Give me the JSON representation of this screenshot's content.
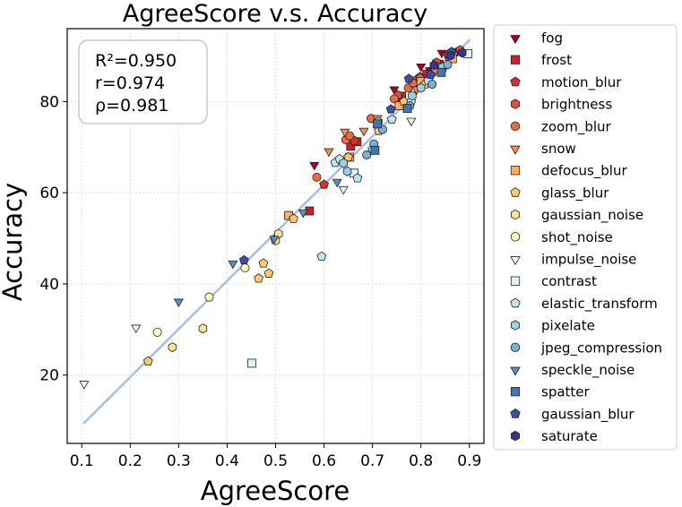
{
  "chart_data": {
    "type": "scatter",
    "title": "AgreeScore  v.s.  Accuracy",
    "xlabel": "AgreeScore",
    "ylabel": "Accuracy",
    "xlim": [
      0.07,
      0.93
    ],
    "ylim": [
      5,
      96
    ],
    "xticks": [
      0.1,
      0.2,
      0.3,
      0.4,
      0.5,
      0.6,
      0.7,
      0.8,
      0.9
    ],
    "xtick_labels": [
      "0.1",
      "0.2",
      "0.3",
      "0.4",
      "0.5",
      "0.6",
      "0.7",
      "0.8",
      "0.9"
    ],
    "yticks": [
      20,
      40,
      60,
      80
    ],
    "ytick_labels": [
      "20",
      "40",
      "60",
      "80"
    ],
    "grid": true,
    "legend_position": "right, outside plot",
    "stats": {
      "r2": "R²=0.950",
      "r": "r=0.974",
      "rho": "ρ=0.981"
    },
    "fit_line": {
      "color": "#a6bdf0",
      "points": [
        [
          0.105,
          9.5
        ],
        [
          0.9,
          93.5
        ]
      ]
    },
    "series": [
      {
        "name": "fog",
        "marker": "triangle-down",
        "color": "#a50026",
        "points": [
          [
            0.58,
            66.2
          ],
          [
            0.745,
            82.8
          ],
          [
            0.8,
            87.8
          ],
          [
            0.843,
            90.8
          ],
          [
            0.875,
            91.2
          ],
          [
            0.818,
            87.0
          ],
          [
            0.86,
            90.5
          ]
        ]
      },
      {
        "name": "frost",
        "marker": "square",
        "color": "#c8232a",
        "points": [
          [
            0.57,
            56.0
          ],
          [
            0.655,
            70.2
          ],
          [
            0.76,
            81.2
          ],
          [
            0.812,
            86.0
          ],
          [
            0.838,
            88.2
          ],
          [
            0.668,
            71.2
          ]
        ]
      },
      {
        "name": "motion_blur",
        "marker": "pentagon",
        "color": "#d73027",
        "points": [
          [
            0.6,
            61.8
          ],
          [
            0.663,
            71.4
          ],
          [
            0.752,
            81.0
          ],
          [
            0.798,
            85.4
          ],
          [
            0.828,
            87.8
          ],
          [
            0.857,
            89.8
          ],
          [
            0.88,
            91.0
          ]
        ]
      },
      {
        "name": "brightness",
        "marker": "hexagon",
        "color": "#e04f36",
        "points": [
          [
            0.752,
            81.4
          ],
          [
            0.79,
            84.7
          ],
          [
            0.832,
            88.6
          ],
          [
            0.858,
            90.3
          ],
          [
            0.881,
            91.3
          ]
        ]
      },
      {
        "name": "zoom_blur",
        "marker": "circle",
        "color": "#ec6c42",
        "points": [
          [
            0.585,
            63.4
          ],
          [
            0.645,
            71.6
          ],
          [
            0.653,
            72.5
          ],
          [
            0.697,
            76.3
          ],
          [
            0.745,
            80.6
          ],
          [
            0.774,
            83.0
          ],
          [
            0.784,
            84.0
          ],
          [
            0.798,
            85.1
          ]
        ]
      },
      {
        "name": "snow",
        "marker": "triangle-down",
        "color": "#f68d52",
        "points": [
          [
            0.61,
            69.2
          ],
          [
            0.643,
            73.5
          ],
          [
            0.682,
            73.7
          ],
          [
            0.71,
            76.5
          ],
          [
            0.76,
            79.5
          ],
          [
            0.791,
            82.8
          ],
          [
            0.829,
            86.8
          ],
          [
            0.868,
            90.3
          ]
        ]
      },
      {
        "name": "defocus_blur",
        "marker": "square",
        "color": "#fdae61",
        "points": [
          [
            0.527,
            55.0
          ],
          [
            0.653,
            67.8
          ],
          [
            0.755,
            79.1
          ],
          [
            0.8,
            84.4
          ],
          [
            0.843,
            87.5
          ],
          [
            0.865,
            89.4
          ]
        ]
      },
      {
        "name": "glass_blur",
        "marker": "pentagon",
        "color": "#fdc770",
        "points": [
          [
            0.237,
            23.0
          ],
          [
            0.465,
            41.2
          ],
          [
            0.486,
            42.3
          ],
          [
            0.475,
            44.5
          ],
          [
            0.499,
            49.8
          ],
          [
            0.537,
            54.3
          ],
          [
            0.65,
            67.8
          ],
          [
            0.713,
            73.6
          ],
          [
            0.765,
            80.0
          ],
          [
            0.808,
            83.8
          ]
        ]
      },
      {
        "name": "gaussian_noise",
        "marker": "hexagon",
        "color": "#fee393",
        "points": [
          [
            0.287,
            26.1
          ],
          [
            0.35,
            30.2
          ],
          [
            0.5,
            49.5
          ],
          [
            0.506,
            51.0
          ]
        ]
      },
      {
        "name": "shot_noise",
        "marker": "circle",
        "color": "#ffffbf",
        "points": [
          [
            0.256,
            29.4
          ],
          [
            0.363,
            37.1
          ],
          [
            0.437,
            43.5
          ]
        ]
      },
      {
        "name": "impulse_noise",
        "marker": "triangle-down",
        "color": "#eef8e4",
        "points": [
          [
            0.105,
            18.2
          ],
          [
            0.212,
            30.5
          ],
          [
            0.64,
            60.9
          ],
          [
            0.78,
            75.9
          ]
        ]
      },
      {
        "name": "contrast",
        "marker": "square",
        "color": "#dff2f6",
        "points": [
          [
            0.451,
            22.6
          ],
          [
            0.662,
            64.3
          ],
          [
            0.897,
            90.5
          ]
        ]
      },
      {
        "name": "elastic_transform",
        "marker": "pentagon",
        "color": "#bfe4ef",
        "points": [
          [
            0.595,
            46.0
          ],
          [
            0.623,
            66.6
          ],
          [
            0.669,
            63.2
          ],
          [
            0.632,
            67.4
          ],
          [
            0.7,
            69.5
          ],
          [
            0.74,
            76.1
          ],
          [
            0.78,
            80.0
          ],
          [
            0.815,
            84.6
          ]
        ]
      },
      {
        "name": "pixelate",
        "marker": "hexagon",
        "color": "#9dd0e4",
        "points": [
          [
            0.648,
            64.7
          ],
          [
            0.64,
            66.5
          ],
          [
            0.712,
            75.6
          ],
          [
            0.782,
            81.3
          ],
          [
            0.8,
            83.0
          ],
          [
            0.845,
            87.6
          ]
        ]
      },
      {
        "name": "jpeg_compression",
        "marker": "circle",
        "color": "#74b3d6",
        "points": [
          [
            0.688,
            68.3
          ],
          [
            0.703,
            70.7
          ],
          [
            0.721,
            73.9
          ],
          [
            0.777,
            79.1
          ],
          [
            0.823,
            83.8
          ],
          [
            0.855,
            88.1
          ]
        ]
      },
      {
        "name": "speckle_noise",
        "marker": "triangle-down",
        "color": "#5b8fc2",
        "points": [
          [
            0.3,
            36.2
          ],
          [
            0.412,
            44.6
          ],
          [
            0.497,
            50.0
          ],
          [
            0.557,
            55.8
          ],
          [
            0.627,
            62.5
          ]
        ]
      },
      {
        "name": "spatter",
        "marker": "square",
        "color": "#4375b5",
        "points": [
          [
            0.705,
            69.3
          ],
          [
            0.71,
            75.1
          ],
          [
            0.772,
            78.5
          ],
          [
            0.842,
            86.4
          ]
        ]
      },
      {
        "name": "gaussian_blur",
        "marker": "pentagon",
        "color": "#3a52a3",
        "points": [
          [
            0.435,
            45.2
          ],
          [
            0.738,
            78.3
          ],
          [
            0.775,
            85.0
          ],
          [
            0.82,
            85.9
          ],
          [
            0.863,
            90.9
          ]
        ]
      },
      {
        "name": "saturate",
        "marker": "hexagon",
        "color": "#313695",
        "points": [
          [
            0.827,
            88.0
          ],
          [
            0.861,
            90.1
          ],
          [
            0.885,
            90.7
          ]
        ]
      }
    ]
  }
}
